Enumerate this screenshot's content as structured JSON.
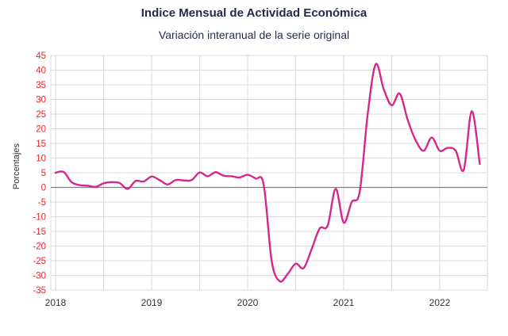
{
  "chart_data": {
    "type": "line",
    "title": "Indice Mensual de  Actividad Económica",
    "subtitle": "Variación interanual de la serie original",
    "ylabel": "Porcentajes",
    "xlabel": "",
    "ylim": [
      -35,
      45
    ],
    "yticks": [
      45,
      40,
      35,
      30,
      25,
      20,
      15,
      10,
      5,
      0,
      -5,
      -10,
      -15,
      -20,
      -25,
      -30,
      -35
    ],
    "xticks": [
      "2018",
      "2019",
      "2020",
      "2021",
      "2022"
    ],
    "grid": true,
    "legend": "none",
    "line_color": "#d6278e",
    "series": [
      {
        "x": [
          "2018-01",
          "2018-02",
          "2018-03",
          "2018-04",
          "2018-05",
          "2018-06",
          "2018-07",
          "2018-08",
          "2018-09",
          "2018-10",
          "2018-11",
          "2018-12",
          "2019-01",
          "2019-02",
          "2019-03",
          "2019-04",
          "2019-05",
          "2019-06",
          "2019-07",
          "2019-08",
          "2019-09",
          "2019-10",
          "2019-11",
          "2019-12",
          "2020-01",
          "2020-02",
          "2020-03",
          "2020-04",
          "2020-05",
          "2020-06",
          "2020-07",
          "2020-08",
          "2020-09",
          "2020-10",
          "2020-11",
          "2020-12",
          "2021-01",
          "2021-02",
          "2021-03",
          "2021-04",
          "2021-05",
          "2021-06",
          "2021-07",
          "2021-08",
          "2021-09",
          "2021-10",
          "2021-11",
          "2021-12",
          "2022-01",
          "2022-02",
          "2022-03",
          "2022-04",
          "2022-05",
          "2022-06"
        ],
        "values": [
          5.0,
          5.3,
          1.8,
          0.8,
          0.6,
          0.2,
          1.4,
          1.8,
          1.5,
          -0.5,
          2.2,
          2.0,
          3.7,
          2.5,
          1.0,
          2.5,
          2.4,
          2.5,
          5.1,
          3.8,
          5.2,
          4.0,
          3.8,
          3.4,
          4.3,
          3.0,
          1.0,
          -25.0,
          -32.0,
          -29.5,
          -26.0,
          -27.5,
          -21.0,
          -14.0,
          -13.0,
          -0.5,
          -12.0,
          -5.0,
          -1.5,
          25.0,
          42.0,
          33.5,
          28.0,
          32.0,
          23.0,
          16.0,
          12.5,
          17.0,
          12.5,
          13.5,
          12.5,
          6.0,
          26.0,
          8.0
        ]
      }
    ]
  }
}
